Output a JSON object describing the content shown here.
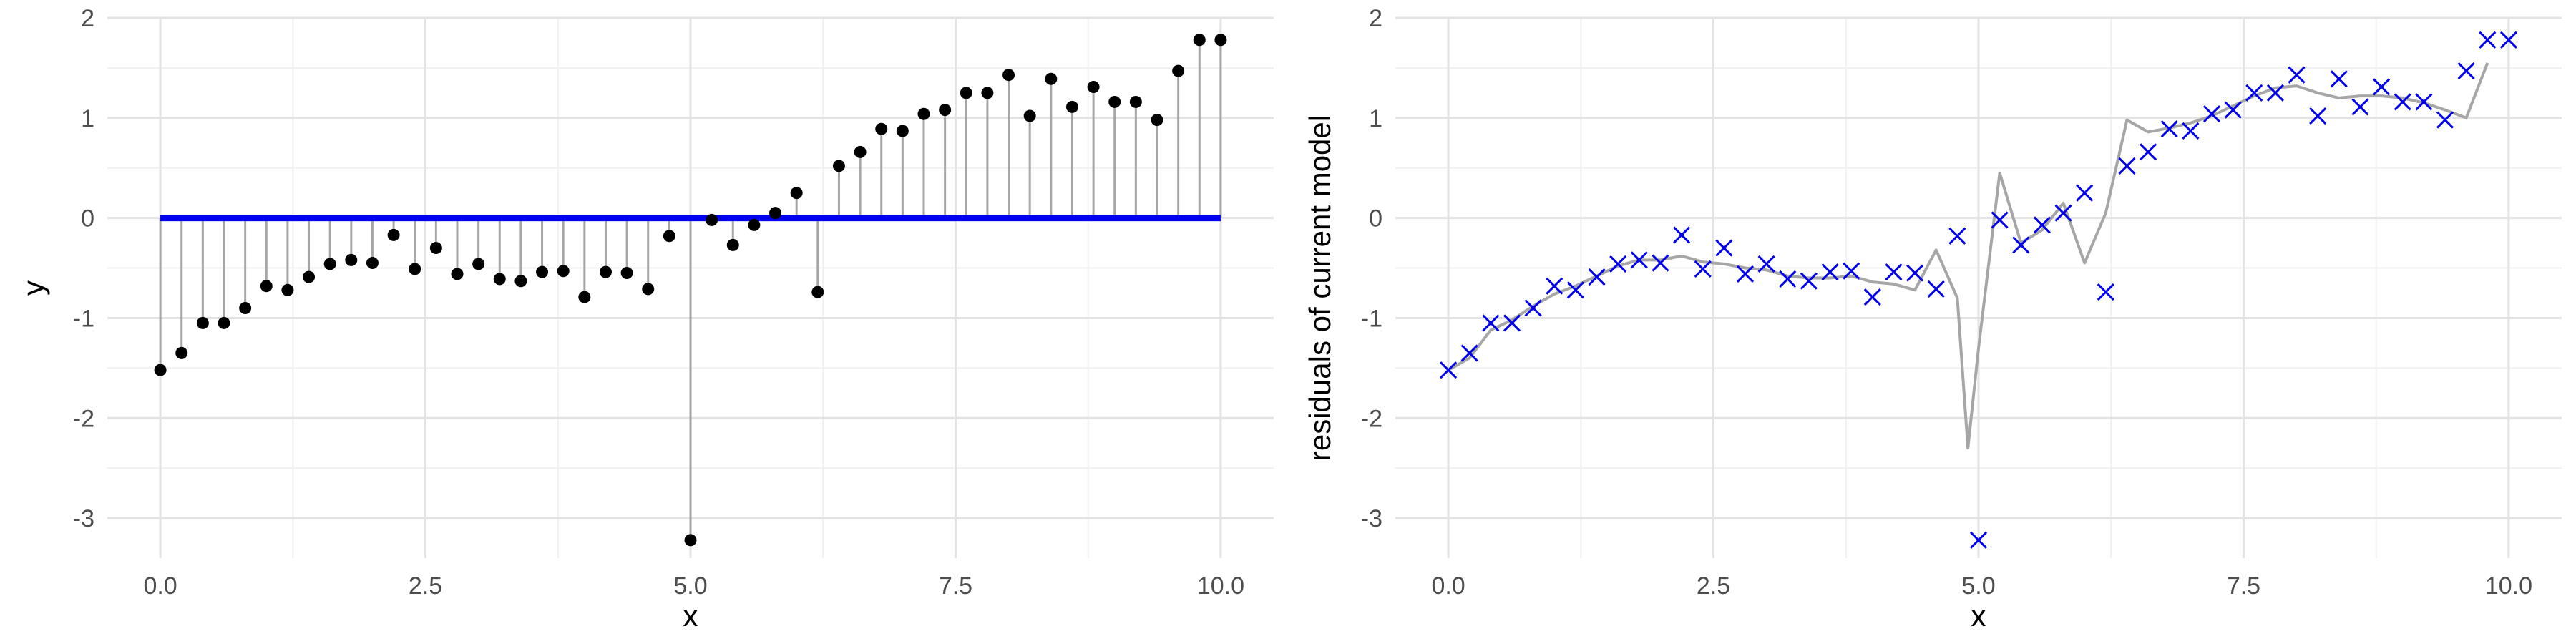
{
  "chart_data": [
    {
      "type": "scatter",
      "xlabel": "x",
      "ylabel": "y",
      "xlim": [
        -0.5,
        10.5
      ],
      "ylim": [
        -3.4,
        2.0
      ],
      "x_ticks": [
        0.0,
        2.5,
        5.0,
        7.5,
        10.0
      ],
      "x_tick_labels": [
        "0.0",
        "2.5",
        "5.0",
        "7.5",
        "10.0"
      ],
      "y_ticks": [
        -3,
        -2,
        -1,
        0,
        1,
        2
      ],
      "y_tick_labels": [
        "-3",
        "-2",
        "-1",
        "0",
        "1",
        "2"
      ],
      "grid": true,
      "legend": "none",
      "colors": {
        "points": "#000000",
        "stems": "#a6a6a6",
        "baseline": "#0000ee"
      },
      "baseline_y": 0,
      "series": [
        {
          "x": [
            0.0,
            0.2,
            0.4,
            0.6,
            0.8,
            1.0,
            1.2,
            1.4,
            1.6,
            1.8,
            2.0,
            2.2,
            2.4,
            2.6,
            2.8,
            3.0,
            3.2,
            3.4,
            3.6,
            3.8,
            4.0,
            4.2,
            4.4,
            4.6,
            4.8,
            5.0,
            5.2,
            5.4,
            5.6,
            5.8,
            6.0,
            6.2,
            6.4,
            6.6,
            6.8,
            7.0,
            7.2,
            7.4,
            7.6,
            7.8,
            8.0,
            8.2,
            8.4,
            8.6,
            8.8,
            9.0,
            9.2,
            9.4,
            9.6,
            9.8,
            10.0
          ],
          "y": [
            -1.52,
            -1.35,
            -1.05,
            -1.05,
            -0.9,
            -0.68,
            -0.72,
            -0.59,
            -0.46,
            -0.42,
            -0.45,
            -0.17,
            -0.51,
            -0.3,
            -0.56,
            -0.46,
            -0.61,
            -0.63,
            -0.54,
            -0.53,
            -0.79,
            -0.54,
            -0.55,
            -0.71,
            -0.18,
            -3.22,
            -0.02,
            -0.27,
            -0.07,
            0.05,
            0.25,
            -0.74,
            0.52,
            0.66,
            0.89,
            0.87,
            1.04,
            1.08,
            1.25,
            1.25,
            1.43,
            1.02,
            1.39,
            1.11,
            1.31,
            1.16,
            1.16,
            0.98,
            1.47,
            1.78,
            1.78
          ]
        }
      ]
    },
    {
      "type": "scatter",
      "xlabel": "x",
      "ylabel": "residuals of current model",
      "xlim": [
        -0.5,
        10.5
      ],
      "ylim": [
        -3.4,
        2.0
      ],
      "x_ticks": [
        0.0,
        2.5,
        5.0,
        7.5,
        10.0
      ],
      "x_tick_labels": [
        "0.0",
        "2.5",
        "5.0",
        "7.5",
        "10.0"
      ],
      "y_ticks": [
        -3,
        -2,
        -1,
        0,
        1,
        2
      ],
      "y_tick_labels": [
        "-3",
        "-2",
        "-1",
        "0",
        "1",
        "2"
      ],
      "grid": true,
      "legend": "none",
      "colors": {
        "points": "#0000ee",
        "fit_line": "#a6a6a6"
      },
      "series": [
        {
          "kind": "points",
          "marker": "x",
          "x": [
            0.0,
            0.2,
            0.4,
            0.6,
            0.8,
            1.0,
            1.2,
            1.4,
            1.6,
            1.8,
            2.0,
            2.2,
            2.4,
            2.6,
            2.8,
            3.0,
            3.2,
            3.4,
            3.6,
            3.8,
            4.0,
            4.2,
            4.4,
            4.6,
            4.8,
            5.0,
            5.2,
            5.4,
            5.6,
            5.8,
            6.0,
            6.2,
            6.4,
            6.6,
            6.8,
            7.0,
            7.2,
            7.4,
            7.6,
            7.8,
            8.0,
            8.2,
            8.4,
            8.6,
            8.8,
            9.0,
            9.2,
            9.4,
            9.6,
            9.8,
            10.0
          ],
          "y": [
            -1.52,
            -1.35,
            -1.05,
            -1.05,
            -0.9,
            -0.68,
            -0.72,
            -0.59,
            -0.46,
            -0.42,
            -0.45,
            -0.17,
            -0.51,
            -0.3,
            -0.56,
            -0.46,
            -0.61,
            -0.63,
            -0.54,
            -0.53,
            -0.79,
            -0.54,
            -0.55,
            -0.71,
            -0.18,
            -3.22,
            -0.02,
            -0.27,
            -0.07,
            0.05,
            0.25,
            -0.74,
            0.52,
            0.66,
            0.89,
            0.87,
            1.04,
            1.08,
            1.25,
            1.25,
            1.43,
            1.02,
            1.39,
            1.11,
            1.31,
            1.16,
            1.16,
            0.98,
            1.47,
            1.78,
            1.78
          ]
        },
        {
          "kind": "line",
          "x": [
            0.0,
            0.2,
            0.4,
            0.6,
            0.8,
            1.0,
            1.2,
            1.4,
            1.6,
            1.8,
            2.0,
            2.2,
            2.4,
            2.6,
            2.8,
            3.0,
            3.2,
            3.4,
            3.6,
            3.8,
            4.0,
            4.2,
            4.4,
            4.6,
            4.8,
            4.9,
            5.0,
            5.2,
            5.4,
            5.6,
            5.8,
            6.0,
            6.2,
            6.4,
            6.6,
            6.8,
            7.0,
            7.2,
            7.4,
            7.6,
            7.8,
            8.0,
            8.2,
            8.4,
            8.6,
            8.8,
            9.0,
            9.2,
            9.4,
            9.6,
            9.8
          ],
          "y": [
            -1.52,
            -1.4,
            -1.12,
            -1.02,
            -0.88,
            -0.76,
            -0.68,
            -0.58,
            -0.48,
            -0.42,
            -0.42,
            -0.38,
            -0.44,
            -0.46,
            -0.5,
            -0.52,
            -0.58,
            -0.6,
            -0.6,
            -0.58,
            -0.64,
            -0.66,
            -0.72,
            -0.32,
            -0.8,
            -2.3,
            -1.3,
            0.45,
            -0.25,
            -0.12,
            0.15,
            -0.45,
            0.05,
            0.98,
            0.86,
            0.9,
            0.95,
            1.02,
            1.12,
            1.22,
            1.3,
            1.32,
            1.25,
            1.2,
            1.22,
            1.22,
            1.2,
            1.15,
            1.08,
            1.0,
            1.55
          ]
        }
      ]
    }
  ]
}
